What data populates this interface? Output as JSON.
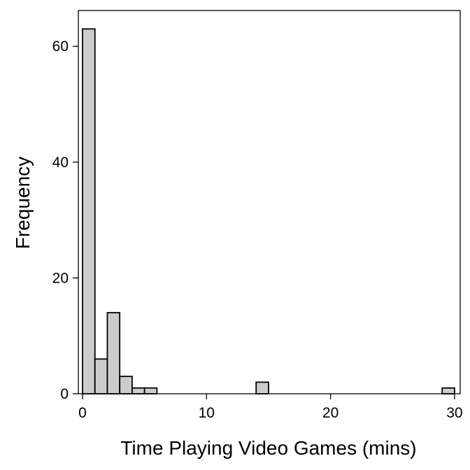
{
  "chart_data": {
    "type": "bar",
    "title": "",
    "xlabel": "Time Playing Video Games (mins)",
    "ylabel": "Frequency",
    "xlim": [
      0,
      30
    ],
    "ylim": [
      0,
      65
    ],
    "bin_width": 1,
    "bins": [
      {
        "start": 0,
        "end": 1,
        "count": 63
      },
      {
        "start": 1,
        "end": 2,
        "count": 6
      },
      {
        "start": 2,
        "end": 3,
        "count": 14
      },
      {
        "start": 3,
        "end": 4,
        "count": 3
      },
      {
        "start": 4,
        "end": 5,
        "count": 1
      },
      {
        "start": 5,
        "end": 6,
        "count": 1
      },
      {
        "start": 14,
        "end": 15,
        "count": 2
      },
      {
        "start": 29,
        "end": 30,
        "count": 1
      }
    ],
    "x_ticks": [
      0,
      10,
      20,
      30
    ],
    "x_tick_labels": [
      "0",
      "10",
      "20",
      "30"
    ],
    "y_ticks": [
      0,
      20,
      40,
      60
    ],
    "y_tick_labels": [
      "0",
      "20",
      "40",
      "60"
    ],
    "grid": false,
    "bar_fill": "#cccccc",
    "bar_stroke": "#000000"
  }
}
